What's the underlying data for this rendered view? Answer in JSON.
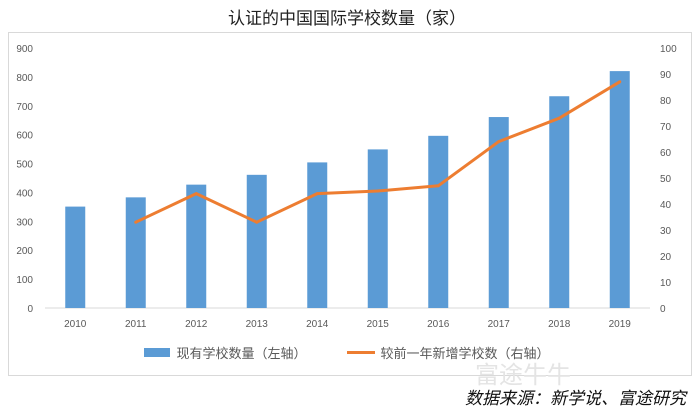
{
  "chart_data": {
    "type": "bar+line",
    "title": "认证的中国国际学校数量（家）",
    "categories": [
      "2010",
      "2011",
      "2012",
      "2013",
      "2014",
      "2015",
      "2016",
      "2017",
      "2018",
      "2019"
    ],
    "series": [
      {
        "name": "现有学校数量（左轴）",
        "type": "bar",
        "axis": "left",
        "color": "#5b9bd5",
        "values": [
          351,
          383,
          427,
          461,
          504,
          549,
          596,
          661,
          733,
          820
        ]
      },
      {
        "name": "较前一年新增学校数（右轴）",
        "type": "line",
        "axis": "right",
        "color": "#ed7d31",
        "values": [
          null,
          33,
          44,
          33,
          44,
          45,
          47,
          64,
          73,
          87
        ]
      }
    ],
    "ylim_left": [
      0,
      900
    ],
    "yticks_left": [
      0,
      100,
      200,
      300,
      400,
      500,
      600,
      700,
      800,
      900
    ],
    "ylim_right": [
      0,
      100
    ],
    "yticks_right": [
      0,
      10,
      20,
      30,
      40,
      50,
      60,
      70,
      80,
      90,
      100
    ],
    "grid": false,
    "legend": "bottom"
  },
  "watermark": "富途牛牛",
  "source": "数据来源：新学说、富途研究"
}
